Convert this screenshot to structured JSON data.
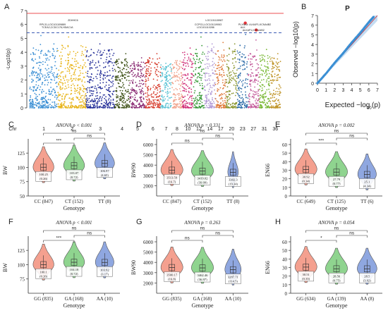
{
  "figure": {
    "panel_letters": [
      "A",
      "B",
      "C",
      "D",
      "E",
      "F",
      "G",
      "H"
    ]
  },
  "chart_data": [
    {
      "panel": "A",
      "type": "scatter",
      "ylabel": "-Log10(p)",
      "xlabel": "Chr",
      "ylim": [
        0,
        7
      ],
      "yticks": [
        0,
        1,
        2,
        3,
        4,
        5,
        6,
        7
      ],
      "chromosomes": [
        {
          "label": "1",
          "color": "#3b8fd4",
          "heights": [
            4.3,
            5.2,
            3.8,
            4.6
          ]
        },
        {
          "label": "2",
          "color": "#e8b51c",
          "heights": [
            4.5,
            5.1,
            3.9,
            4.4
          ]
        },
        {
          "label": "3",
          "color": "#28329a",
          "heights": [
            4.2,
            4.6,
            3.7
          ]
        },
        {
          "label": "4",
          "color": "#3f5218",
          "heights": [
            3.5,
            3.9
          ]
        },
        {
          "label": "5",
          "color": "#8a2a73",
          "heights": [
            3.3,
            3.6
          ]
        },
        {
          "label": "6",
          "color": "#d63a2a",
          "heights": [
            3.6,
            3.9
          ]
        },
        {
          "label": "7",
          "color": "#58c2d4",
          "heights": [
            3.2
          ]
        },
        {
          "label": "8",
          "color": "#f0a38c",
          "heights": [
            3.4
          ]
        },
        {
          "label": "10",
          "color": "#d0317a",
          "heights": [
            4.0,
            4.3
          ]
        },
        {
          "label": "12",
          "color": "#3a9a3a",
          "heights": [
            4.2,
            5.1
          ]
        },
        {
          "label": "14",
          "color": "#b39bd6",
          "heights": [
            4.4,
            4.6
          ]
        },
        {
          "label": "17",
          "color": "#e07a3a",
          "heights": [
            4.1,
            4.7
          ]
        },
        {
          "label": "20",
          "color": "#8a9630",
          "heights": [
            4.3,
            4.6
          ]
        },
        {
          "label": "23",
          "color": "#2a6aa8",
          "heights": [
            4.5,
            6.1
          ]
        },
        {
          "label": "27",
          "color": "#c45c9c",
          "heights": [
            3.9,
            5.6
          ]
        },
        {
          "label": "31",
          "color": "#79b835",
          "heights": [
            3.8,
            4.2
          ]
        },
        {
          "label": "36",
          "color": "#c0952a",
          "heights": [
            3.6,
            3.9
          ]
        }
      ],
      "threshold_lines": [
        6.8,
        5.4
      ],
      "significant_labels": [
        {
          "text": "RPL31,LOC101109889",
          "chr": "1"
        },
        {
          "text": "TCEA2,CCDC176,HDAC1A",
          "chr": "1"
        },
        {
          "text": "ZDHHC6",
          "chr": "2"
        },
        {
          "text": "CCPG1,LOC101119063",
          "chr": "12"
        },
        {
          "text": "LOC101110286",
          "chr": "12"
        },
        {
          "text": "LOC101115987",
          "chr": "14"
        },
        {
          "text": "PLXNA4",
          "chr": "23"
        },
        {
          "text": "ALK",
          "chr": "23"
        },
        {
          "text": "ALKAP1,KCNA4B2",
          "chr": "23"
        },
        {
          "text": "ALKAP1,KCNA4B2",
          "chr": "27"
        }
      ]
    },
    {
      "panel": "B",
      "type": "scatter",
      "title": "P",
      "xlabel": "Expected -log10(p)",
      "ylabel": "Observed -log10(p)",
      "xlim": [
        0,
        7
      ],
      "ylim": [
        0,
        7
      ],
      "xticks": [
        0,
        1,
        2,
        3,
        4,
        5,
        6,
        7
      ],
      "yticks": [
        0,
        1,
        2,
        3,
        4,
        5,
        6,
        7
      ],
      "points": [
        [
          0.0,
          0.0
        ],
        [
          1.0,
          1.0
        ],
        [
          2.0,
          2.1
        ],
        [
          3.0,
          3.1
        ],
        [
          4.0,
          4.2
        ],
        [
          5.0,
          5.2
        ],
        [
          6.0,
          6.3
        ],
        [
          6.6,
          6.9
        ]
      ]
    },
    {
      "panel": "C",
      "type": "violin",
      "title": "ANOVA p < 0.001",
      "ylabel": "BW",
      "xlabel": "Genotype",
      "ylim": [
        50,
        140
      ],
      "yticks": [
        50,
        75,
        100,
        125
      ],
      "categories": [
        "CC (847)",
        "CT (152)",
        "TT (8)"
      ],
      "medians": [
        100.25,
        103.07,
        106.97
      ],
      "summary_labels": [
        [
          "100.25",
          "(0.26)"
        ],
        [
          "103.07",
          "(0.72)"
        ],
        [
          "106.97",
          "(4.65)"
        ]
      ],
      "comparisons": [
        {
          "pair": [
            0,
            1
          ],
          "label": "***"
        },
        {
          "pair": [
            0,
            2
          ],
          "label": "ns"
        },
        {
          "pair": [
            1,
            2
          ],
          "label": "ns"
        }
      ]
    },
    {
      "panel": "D",
      "type": "violin",
      "title": "ANOVA p = 0.331",
      "ylabel": "BW90",
      "xlabel": "Genotype",
      "ylim": [
        1000,
        6000
      ],
      "yticks": [
        2000,
        3000,
        4000,
        5000,
        6000
      ],
      "categories": [
        "CC (847)",
        "CT (152)",
        "TT (8)"
      ],
      "medians": [
        3513.59,
        3419.02,
        3302.3
      ],
      "summary_labels": [
        [
          "3513.59",
          "(16.7)"
        ],
        [
          "3419.02",
          "(39.99)"
        ],
        [
          "3302.3",
          "(19.34)"
        ]
      ],
      "comparisons": [
        {
          "pair": [
            0,
            1
          ],
          "label": "ns"
        },
        {
          "pair": [
            0,
            2
          ],
          "label": "ns"
        },
        {
          "pair": [
            1,
            2
          ],
          "label": "ns"
        }
      ]
    },
    {
      "panel": "E",
      "type": "violin",
      "title": "ANOVA p = 0.002",
      "ylabel": "EN66",
      "xlabel": "Genotype",
      "ylim": [
        0,
        60
      ],
      "yticks": [
        0,
        10,
        20,
        30,
        40,
        50,
        60
      ],
      "categories": [
        "CC (649)",
        "CT (125)",
        "TT (6)"
      ],
      "medians": [
        30.92,
        27.79,
        25.1
      ],
      "summary_labels": [
        [
          "30.92",
          "(0.34)"
        ],
        [
          "27.79",
          "(0.77)"
        ],
        [
          "25.1",
          "(4.34)"
        ]
      ],
      "comparisons": [
        {
          "pair": [
            0,
            1
          ],
          "label": "***"
        },
        {
          "pair": [
            0,
            2
          ],
          "label": "ns"
        },
        {
          "pair": [
            1,
            2
          ],
          "label": "ns"
        }
      ]
    },
    {
      "panel": "F",
      "type": "violin",
      "title": "ANOVA p < 0.001",
      "ylabel": "BW",
      "xlabel": "Genotype",
      "ylim": [
        50,
        140
      ],
      "yticks": [
        75,
        100,
        125
      ],
      "categories": [
        "GG (835)",
        "GA (168)",
        "AA (10)"
      ],
      "medians": [
        100.1,
        104.18,
        103.92
      ],
      "summary_labels": [
        [
          "100.1",
          "(0.26)"
        ],
        [
          "104.18",
          "(0.72)"
        ],
        [
          "103.92",
          "(3.17)"
        ]
      ],
      "comparisons": [
        {
          "pair": [
            0,
            1
          ],
          "label": "***"
        },
        {
          "pair": [
            0,
            2
          ],
          "label": "ns"
        },
        {
          "pair": [
            1,
            2
          ],
          "label": "ns"
        }
      ]
    },
    {
      "panel": "G",
      "type": "violin",
      "title": "ANOVA p = 0.263",
      "ylabel": "BW90",
      "xlabel": "Genotype",
      "ylim": [
        1000,
        6000
      ],
      "yticks": [
        2000,
        3000,
        4000,
        5000,
        6000
      ],
      "categories": [
        "GG (835)",
        "GA (168)",
        "AA (10)"
      ],
      "medians": [
        3500.17,
        3462.46,
        3287.71
      ],
      "summary_labels": [
        [
          "3500.17",
          "(16.8)"
        ],
        [
          "3462.46",
          "(36.97)"
        ],
        [
          "3287.71",
          "(114.5)"
        ]
      ],
      "comparisons": [
        {
          "pair": [
            0,
            1
          ],
          "label": "ns"
        },
        {
          "pair": [
            0,
            2
          ],
          "label": "ns"
        },
        {
          "pair": [
            1,
            2
          ],
          "label": "ns"
        }
      ]
    },
    {
      "panel": "H",
      "type": "violin",
      "title": "ANOVA p = 0.054",
      "ylabel": "EN66",
      "xlabel": "Genotype",
      "ylim": [
        0,
        60
      ],
      "yticks": [
        0,
        10,
        20,
        30,
        40,
        50,
        60
      ],
      "categories": [
        "GG (634)",
        "GA (139)",
        "AA (8)"
      ],
      "medians": [
        30.51,
        28.56,
        28.5
      ],
      "summary_labels": [
        [
          "30.51",
          "(0.35)"
        ],
        [
          "28.56",
          "(0.75)"
        ],
        [
          "28.5",
          "(3.92)"
        ]
      ],
      "comparisons": [
        {
          "pair": [
            0,
            1
          ],
          "label": "*"
        },
        {
          "pair": [
            0,
            2
          ],
          "label": "ns"
        },
        {
          "pair": [
            1,
            2
          ],
          "label": "ns"
        }
      ]
    }
  ],
  "colors": {
    "group1": "#f4a08f",
    "group2": "#8fd48f",
    "group3": "#8fa7e0",
    "threshold_red": "#e8343a",
    "threshold_blue": "#2244aa",
    "qq_points": "#3a8fd4",
    "qq_band": "#b3d3f0",
    "sig_point": "#e8343a"
  }
}
